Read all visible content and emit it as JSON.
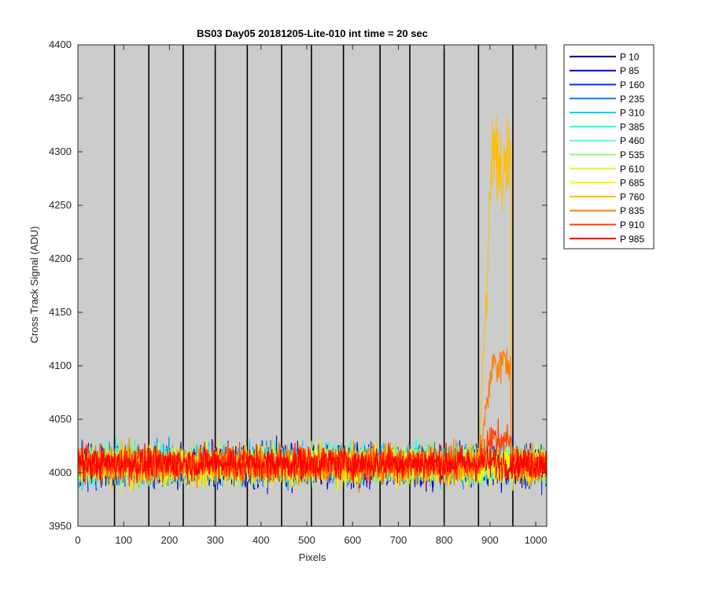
{
  "chart_data": {
    "type": "line",
    "title": "BS03 Day05 20181205-Lite-010 int time = 20 sec",
    "xlabel": "Pixels",
    "ylabel": "Cross Track Signal (ADU)",
    "xlim": [
      0,
      1024
    ],
    "ylim": [
      3950,
      4400
    ],
    "xticks": [
      0,
      100,
      200,
      300,
      400,
      500,
      600,
      700,
      800,
      900,
      1000
    ],
    "yticks": [
      3950,
      4000,
      4050,
      4100,
      4150,
      4200,
      4250,
      4300,
      4350,
      4400
    ],
    "vertical_lines_x": [
      80,
      155,
      230,
      300,
      370,
      445,
      510,
      580,
      660,
      725,
      800,
      875,
      950
    ],
    "plot_background": "#cccccc",
    "legend_placement": "outside-top-right",
    "series": [
      {
        "name": "P 10",
        "color": "#00008f",
        "baseline": 4007,
        "noise": 9,
        "bump": 0
      },
      {
        "name": "P 85",
        "color": "#0000df",
        "baseline": 4006,
        "noise": 10,
        "bump": 0
      },
      {
        "name": "P 160",
        "color": "#0030ff",
        "baseline": 4006,
        "noise": 9,
        "bump": 0
      },
      {
        "name": "P 235",
        "color": "#0080ff",
        "baseline": 4007,
        "noise": 9,
        "bump": 0
      },
      {
        "name": "P 310",
        "color": "#00cfff",
        "baseline": 4008,
        "noise": 9,
        "bump": 0
      },
      {
        "name": "P 385",
        "color": "#20ffdf",
        "baseline": 4009,
        "noise": 9,
        "bump": 0
      },
      {
        "name": "P 460",
        "color": "#60ffbf",
        "baseline": 4008,
        "noise": 9,
        "bump": 0
      },
      {
        "name": "P 535",
        "color": "#8fff70",
        "baseline": 4008,
        "noise": 9,
        "bump": 0
      },
      {
        "name": "P 610",
        "color": "#cfff30",
        "baseline": 4006,
        "noise": 9,
        "bump": 0
      },
      {
        "name": "P 685",
        "color": "#ffef00",
        "baseline": 4007,
        "noise": 9,
        "bump": 0
      },
      {
        "name": "P 760",
        "color": "#ffbf00",
        "baseline": 4007,
        "noise": 9,
        "bump": 290
      },
      {
        "name": "P 835",
        "color": "#ff7f00",
        "baseline": 4008,
        "noise": 9,
        "bump": 95
      },
      {
        "name": "P 910",
        "color": "#ff3f00",
        "baseline": 4009,
        "noise": 8,
        "bump": 22
      },
      {
        "name": "P 985",
        "color": "#ff0000",
        "baseline": 4009,
        "noise": 8,
        "bump": 0
      }
    ],
    "bump_range_x": [
      880,
      945
    ]
  }
}
